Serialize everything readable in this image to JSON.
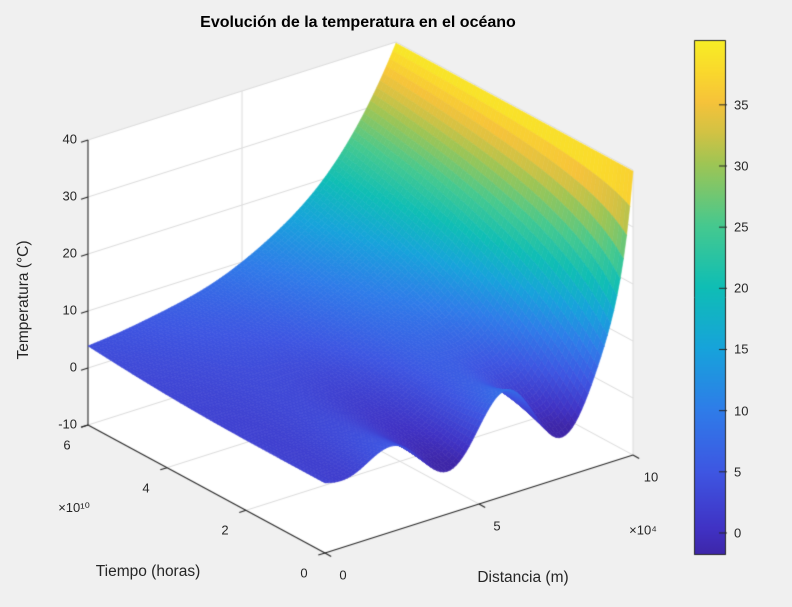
{
  "figure": {
    "background": "#F0F0F0",
    "axes_background": "#FFFFFF",
    "grid_color": "#DCDCDC",
    "axis_color": "#262626",
    "text_color": "#262626"
  },
  "chart_data": {
    "type": "surface",
    "title": "Evolución de la temperatura en el océano",
    "xlabel": "Distancia (m)",
    "ylabel": "Tiempo (horas)",
    "zlabel": "Temperatura (°C)",
    "x_axis": {
      "ticks": [
        0,
        5,
        10
      ],
      "exponent_label": "×10⁴",
      "data_range": [
        0,
        100000
      ],
      "unit_scale": 10000
    },
    "y_axis": {
      "ticks": [
        0,
        2,
        4,
        6
      ],
      "exponent_label": "×10¹⁰",
      "data_range": [
        0,
        60000000000
      ],
      "unit_scale": 10000000000
    },
    "z_axis": {
      "ticks": [
        -10,
        0,
        10,
        20,
        30,
        40
      ],
      "range": [
        -10,
        40
      ]
    },
    "view": {
      "azimuth": -37.5,
      "elevation": 30,
      "projection": "orthographic"
    },
    "grid": true,
    "colorbar": {
      "ticks": [
        0,
        5,
        10,
        15,
        20,
        25,
        30,
        35
      ],
      "clim": [
        -1.8,
        40.3
      ]
    },
    "colormap": {
      "name": "parula",
      "stops": [
        [
          0.0,
          "#3E26A8"
        ],
        [
          0.05,
          "#4032C4"
        ],
        [
          0.16,
          "#3E56E2"
        ],
        [
          0.28,
          "#2F7CE9"
        ],
        [
          0.4,
          "#17A3DB"
        ],
        [
          0.52,
          "#0FBEB5"
        ],
        [
          0.64,
          "#46C98F"
        ],
        [
          0.76,
          "#9FC554"
        ],
        [
          0.82,
          "#D2C244"
        ],
        [
          0.88,
          "#F6C33A"
        ],
        [
          0.94,
          "#FAD92C"
        ],
        [
          1.0,
          "#F7EE25"
        ]
      ]
    },
    "surface_model": {
      "description": "T(X,s) = 2.3 + 37.5*exp(-(10-X)/(0.55+2.6*s)) + X*(1.5-0.07*X)*sin(2*pi*X/3.9 - pi/2)*exp(-4*s)*(1-(X/10)^6), with X = distancia/1e4 in [0,10], s = tiempo/6e10 in [0,1]",
      "base_offset": 2.3,
      "base_amp": 37.5,
      "delta0": 0.55,
      "delta_growth": 2.6,
      "ripple_amp_lin": 1.5,
      "ripple_amp_quad": 0.07,
      "ripple_wavelength": 3.9,
      "ripple_phase": -1.5707963,
      "ripple_time_decay": 4,
      "ripple_edge_power": 6,
      "x_units_max": 10,
      "s_max": 1,
      "grid_nx": 96,
      "grid_nt": 64,
      "boundary_values": {
        "T_at_x0": 2.3,
        "T_at_xmax": 39.8,
        "T_min_front_trough": -2.8
      }
    }
  }
}
